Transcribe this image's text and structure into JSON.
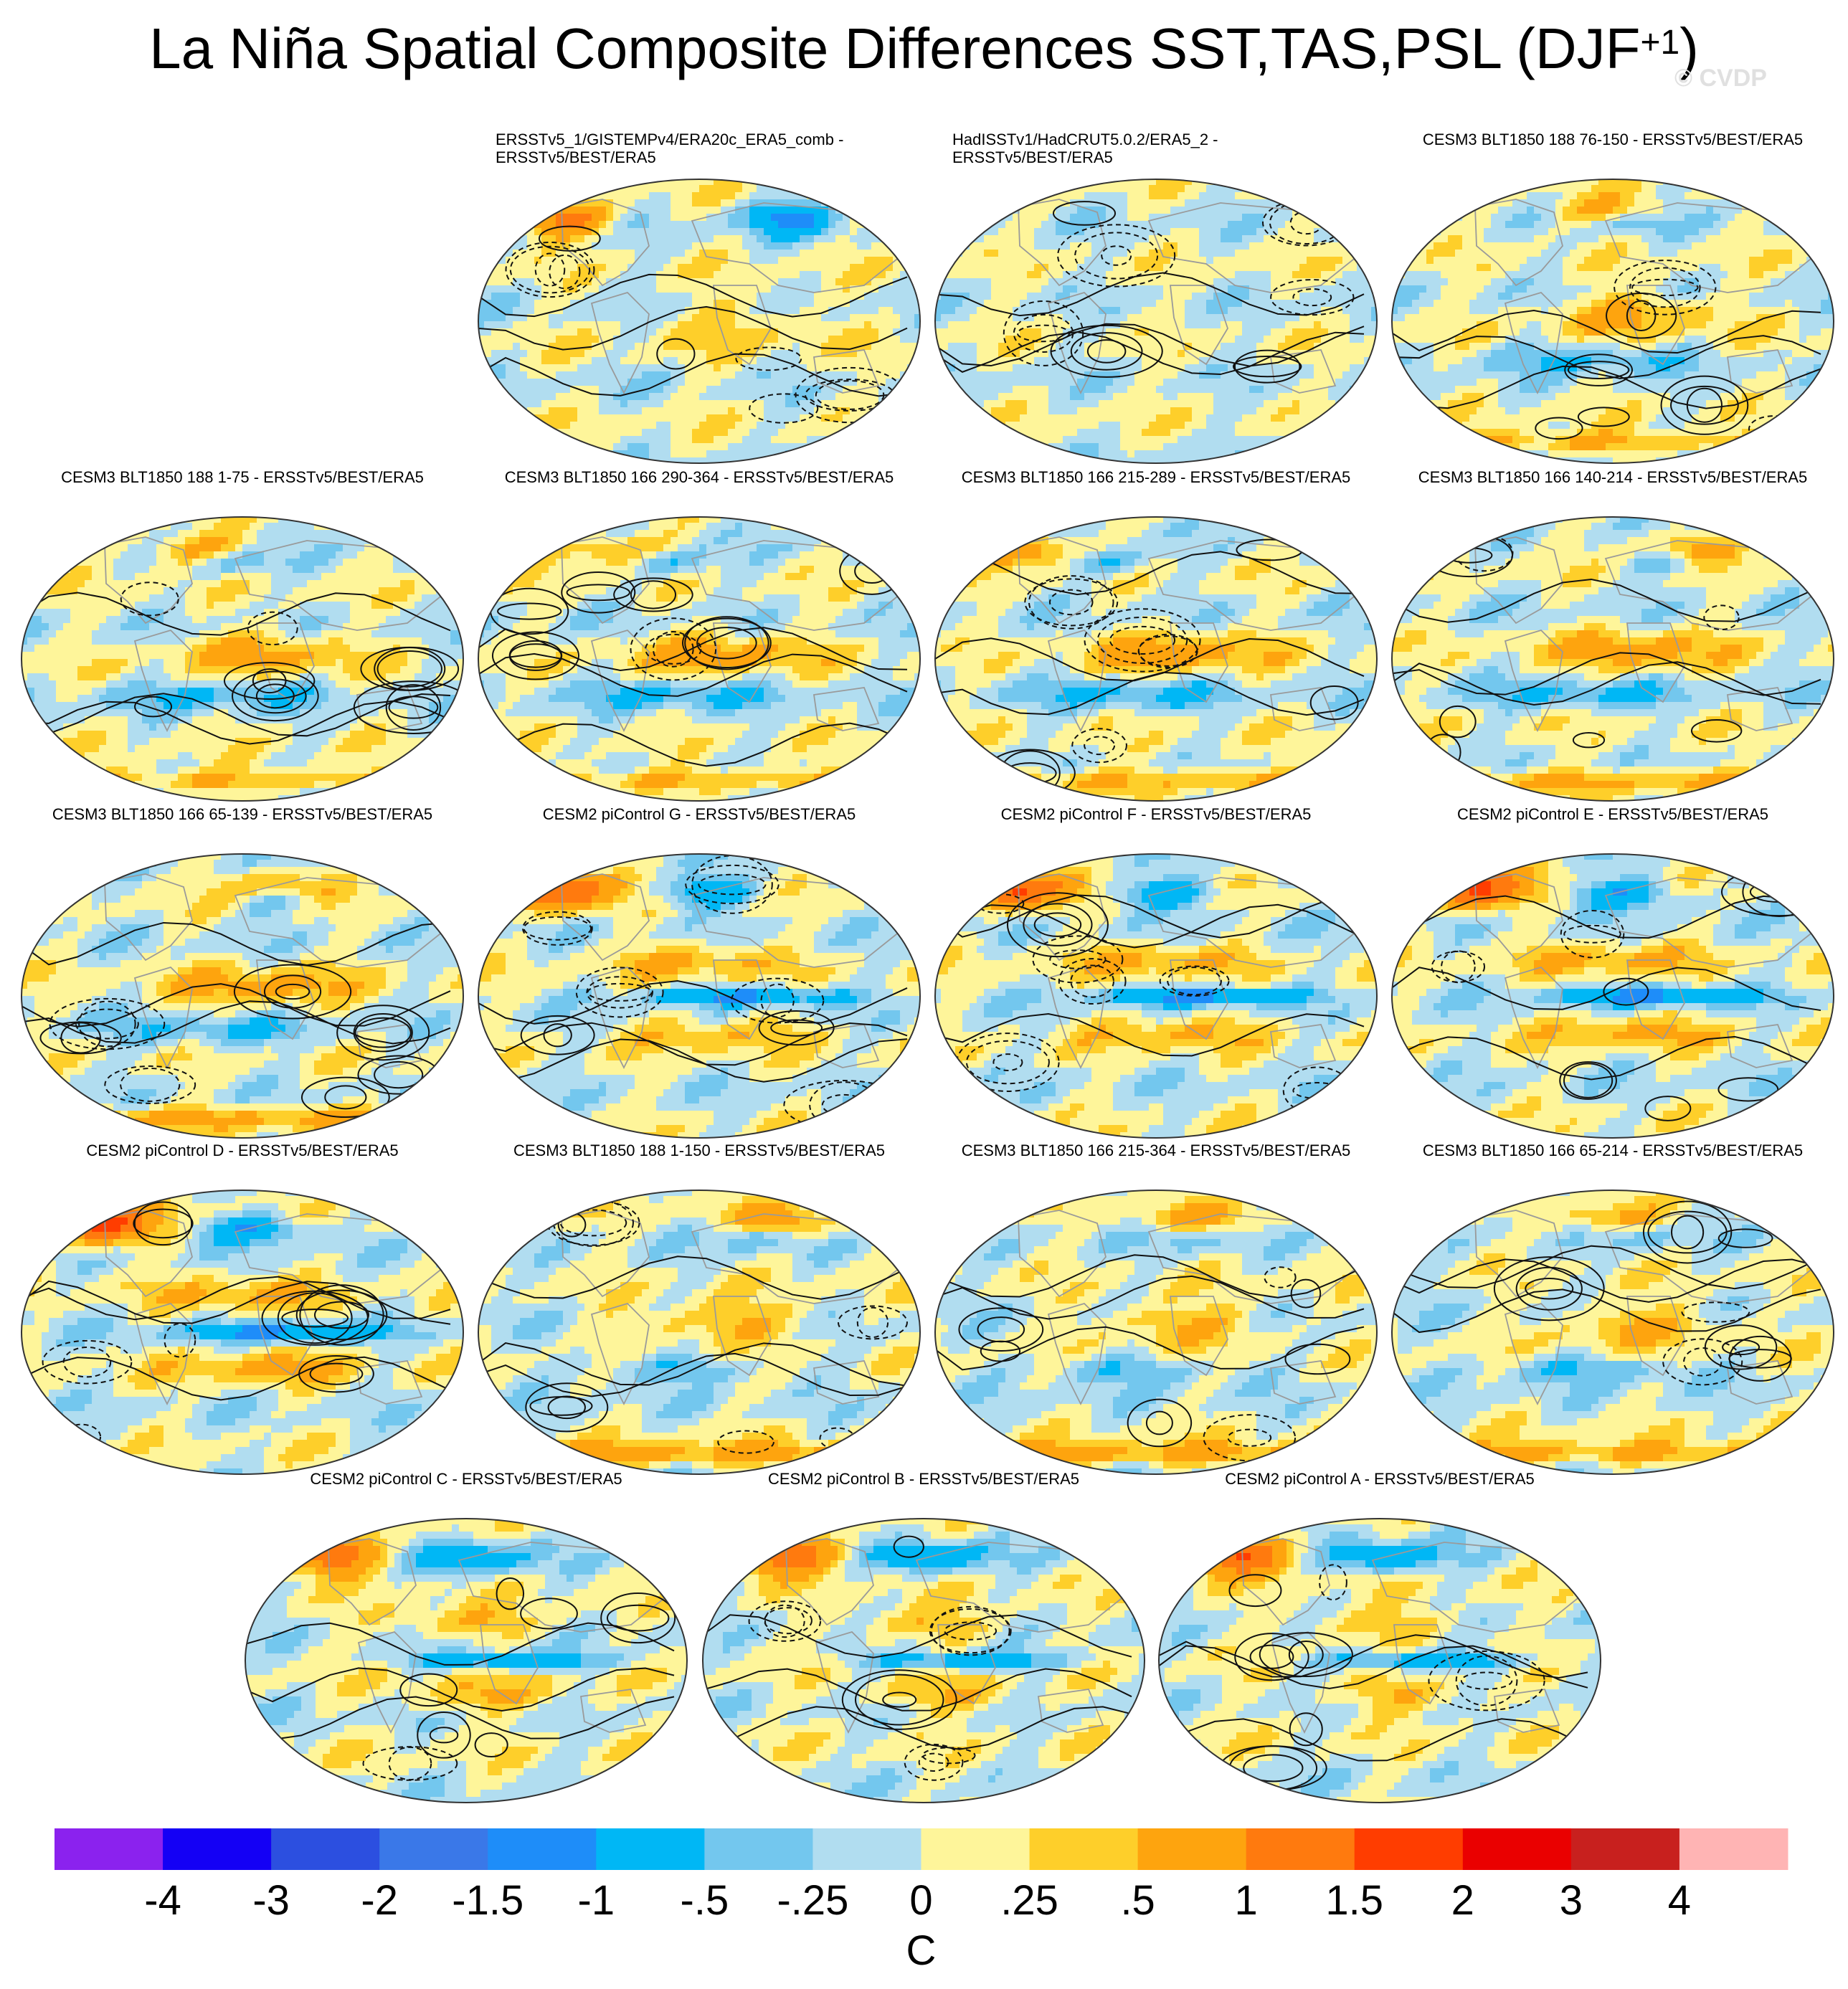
{
  "title": {
    "main": "La Niña Spatial Composite Differences SST,TAS,PSL (DJF",
    "sup": "+1",
    "close": ")"
  },
  "watermark": "© CVDP",
  "chart_data": {
    "type": "heatmap",
    "description_type": "multi-panel global map composite",
    "colorbar": {
      "unit": "C",
      "tick_labels": [
        "-4",
        "-3",
        "-2",
        "-1.5",
        "-1",
        "-.5",
        "-.25",
        "0",
        ".25",
        ".5",
        "1",
        "1.5",
        "2",
        "3",
        "4"
      ],
      "colors": [
        "#8B22EE",
        "#1400F5",
        "#2C4FE0",
        "#3A78E8",
        "#1E8DF9",
        "#00B7F5",
        "#73C7EE",
        "#B1DDF0",
        "#FEF59A",
        "#FECF2A",
        "#FEA40E",
        "#FF7A0E",
        "#FF3D00",
        "#EA0000",
        "#C8201E",
        "#FFB4B4"
      ]
    },
    "panels": [
      {
        "title": "ERSSTv5_1/GISTEMPv4/ERA20c_ERA5_comb -",
        "title2": "ERSSTv5/BEST/ERA5",
        "pattern": 1,
        "seed": 11
      },
      {
        "title": "HadISSTv1/HadCRUT5.0.2/ERA5_2 -",
        "title2": "ERSSTv5/BEST/ERA5",
        "pattern": 2,
        "seed": 12
      },
      {
        "title": "CESM3 BLT1850 188 76-150 - ERSSTv5/BEST/ERA5",
        "title2": "",
        "pattern": 3,
        "seed": 13
      },
      {
        "title": "CESM3 BLT1850 188 1-75 - ERSSTv5/BEST/ERA5",
        "title2": "",
        "pattern": 3,
        "seed": 14
      },
      {
        "title": "CESM3 BLT1850 166 290-364 - ERSSTv5/BEST/ERA5",
        "title2": "",
        "pattern": 3,
        "seed": 15
      },
      {
        "title": "CESM3 BLT1850 166 215-289 - ERSSTv5/BEST/ERA5",
        "title2": "",
        "pattern": 3,
        "seed": 16
      },
      {
        "title": "CESM3 BLT1850 166 140-214 - ERSSTv5/BEST/ERA5",
        "title2": "",
        "pattern": 3,
        "seed": 17
      },
      {
        "title": "CESM3 BLT1850 166 65-139 - ERSSTv5/BEST/ERA5",
        "title2": "",
        "pattern": 3,
        "seed": 18
      },
      {
        "title": "CESM2 piControl G - ERSSTv5/BEST/ERA5",
        "title2": "",
        "pattern": 4,
        "seed": 19
      },
      {
        "title": "CESM2 piControl F - ERSSTv5/BEST/ERA5",
        "title2": "",
        "pattern": 4,
        "seed": 20
      },
      {
        "title": "CESM2 piControl E - ERSSTv5/BEST/ERA5",
        "title2": "",
        "pattern": 4,
        "seed": 21
      },
      {
        "title": "CESM2 piControl D - ERSSTv5/BEST/ERA5",
        "title2": "",
        "pattern": 4,
        "seed": 22
      },
      {
        "title": "CESM3 BLT1850 188 1-150 - ERSSTv5/BEST/ERA5",
        "title2": "",
        "pattern": 3,
        "seed": 23
      },
      {
        "title": "CESM3 BLT1850 166 215-364 - ERSSTv5/BEST/ERA5",
        "title2": "",
        "pattern": 3,
        "seed": 24
      },
      {
        "title": "CESM3 BLT1850 166 65-214 - ERSSTv5/BEST/ERA5",
        "title2": "",
        "pattern": 3,
        "seed": 25
      },
      {
        "title": "CESM2 piControl C - ERSSTv5/BEST/ERA5",
        "title2": "",
        "pattern": 4,
        "seed": 26
      },
      {
        "title": "CESM2 piControl B - ERSSTv5/BEST/ERA5",
        "title2": "",
        "pattern": 4,
        "seed": 27
      },
      {
        "title": "CESM2 piControl A - ERSSTv5/BEST/ERA5",
        "title2": "",
        "pattern": 4,
        "seed": 28
      }
    ]
  }
}
